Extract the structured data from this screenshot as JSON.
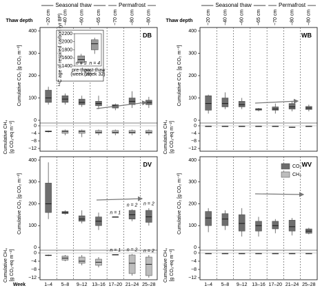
{
  "chart_data": [
    {
      "type": "box",
      "title": "DB",
      "depth_title": "Thaw depth",
      "phase_labels": [
        "Seasonal thaw",
        "Permafrost"
      ],
      "depths": [
        "−20 cm",
        "−40 cm",
        "−60 cm",
        "−65 cm",
        "−70 cm",
        "−80 cm",
        "−80 cm"
      ],
      "ylabel": "Cumulative CO₂ [g CO₂ m⁻²]",
      "ylim": [
        0,
        400
      ],
      "yticks": [
        0,
        100,
        200,
        300,
        400
      ],
      "y2label": [
        "Cumulative CH₄",
        "[g CO₂-eq m⁻²]"
      ],
      "y2lim": [
        -12,
        0
      ],
      "y2ticks": [
        0,
        {
          "value": -4,
          "label": "−4"
        },
        {
          "value": -8,
          "label": "−8"
        },
        {
          "value": -12,
          "label": "−12"
        }
      ],
      "series": [
        {
          "color": "#6e6e6e",
          "values": [
            [
              70,
              80,
              100,
              135,
              150
            ],
            [
              70,
              80,
              95,
              110,
              120
            ],
            [
              60,
              70,
              80,
              95,
              110
            ],
            [
              50,
              65,
              75,
              85,
              110
            ],
            [
              45,
              55,
              65,
              70,
              75
            ],
            [
              55,
              70,
              85,
              100,
              130
            ],
            [
              55,
              70,
              80,
              90,
              105
            ]
          ]
        },
        {
          "color": "#bdbdbd",
          "axis": "y2",
          "values": [
            [
              -3.5,
              -3.2,
              -3,
              -2.7,
              -2.5
            ],
            [
              -5,
              -4,
              -3,
              -2.5,
              -2
            ],
            [
              -6,
              -4,
              -3,
              -2.5,
              -2
            ],
            [
              -5,
              -4,
              -3.5,
              -2.5,
              -2
            ],
            [
              -5,
              -4,
              -3.5,
              -2.5,
              -2
            ],
            [
              -5,
              -4,
              -3.5,
              -2.5,
              -2
            ],
            [
              -5,
              -4,
              -3.5,
              -2.5,
              -2
            ]
          ]
        }
      ],
      "inset": {
        "ylabel": "¹⁴C age of respired carbon (yr BP)",
        "ylim": [
          1400,
          2200
        ],
        "yticks": [
          1400,
          1600,
          1800,
          2000,
          2200
        ],
        "categories": [
          [
            "pre-thaw",
            "(week 15)"
          ],
          [
            "post-thaw",
            "(week 32)"
          ]
        ],
        "n_labels": [
          "n = 3",
          "n = 4"
        ],
        "color": "#9a9a9a",
        "values": [
          [
            1420,
            1480,
            1560,
            1650,
            1700
          ],
          [
            1700,
            1800,
            1950,
            2050,
            2100
          ]
        ]
      }
    },
    {
      "type": "box",
      "title": "WB",
      "depth_title": "Thaw depth",
      "phase_labels": [
        "Seasonal thaw",
        "Permafrost"
      ],
      "depths": [
        "−20 cm",
        "−40 cm",
        "−60 cm",
        "−65 cm",
        "−70 cm",
        "−80 cm",
        "−80 cm"
      ],
      "ylabel": "Cumulative CO₂ [g CO₂ m⁻²]",
      "ylim": [
        0,
        400
      ],
      "yticks": [
        0,
        100,
        200,
        300,
        400
      ],
      "y2label": [
        "Cumulative CH₄",
        "[g CO₂-eq m⁻²]"
      ],
      "y2lim": [
        -12,
        0
      ],
      "y2ticks": [
        0,
        {
          "value": -4,
          "label": "−4"
        },
        {
          "value": -8,
          "label": "−8"
        },
        {
          "value": -12,
          "label": "−12"
        }
      ],
      "series": [
        {
          "color": "#6e6e6e",
          "values": [
            [
              30,
              45,
              75,
              110,
              115
            ],
            [
              50,
              60,
              75,
              100,
              125
            ],
            [
              50,
              60,
              70,
              85,
              100
            ],
            [
              40,
              45,
              50,
              52,
              55
            ],
            [
              30,
              45,
              50,
              60,
              75
            ],
            [
              40,
              50,
              60,
              75,
              85
            ],
            [
              40,
              48,
              55,
              62,
              70
            ]
          ]
        },
        {
          "color": "#bdbdbd",
          "axis": "y2",
          "values": [
            [
              -0.5,
              -0.4,
              -0.3,
              -0.2,
              -0.1
            ],
            [
              -0.5,
              -0.4,
              -0.3,
              -0.2,
              -0.1
            ],
            [
              -0.5,
              -0.4,
              -0.3,
              -0.2,
              -0.1
            ],
            [
              -0.5,
              -0.4,
              -0.3,
              -0.2,
              -0.1
            ],
            [
              -0.5,
              -0.4,
              -0.3,
              -0.2,
              -0.1
            ],
            [
              -1,
              -0.9,
              -0.8,
              -0.6,
              -0.5
            ],
            [
              -0.5,
              -0.4,
              -0.3,
              -0.2,
              -0.1
            ]
          ]
        }
      ]
    },
    {
      "type": "box",
      "title": "DV",
      "xlabel": "Week",
      "categories": [
        "1–4",
        "5–8",
        "9–12",
        "13–16",
        "17–20",
        "21–24",
        "25–28"
      ],
      "ylabel": "Cumulative CO₂ [g CO₂ m⁻²]",
      "ylim": [
        0,
        400
      ],
      "yticks": [
        0,
        100,
        200,
        300,
        400
      ],
      "y2label": [
        "Cumulative CH₄",
        "[g CO₂-eq m⁻²]"
      ],
      "y2lim": [
        -12,
        0
      ],
      "y2ticks": [
        0,
        {
          "value": -4,
          "label": "−4"
        },
        {
          "value": -8,
          "label": "−8"
        },
        {
          "value": -12,
          "label": "−12"
        }
      ],
      "series": [
        {
          "color": "#6e6e6e",
          "values": [
            [
              130,
              160,
              200,
              295,
              390
            ],
            [
              150,
              155,
              160,
              165,
              170
            ],
            [
              110,
              120,
              130,
              145,
              170
            ],
            [
              80,
              100,
              120,
              140,
              160
            ],
            [
              140,
              140,
              140,
              140,
              140
            ],
            [
              120,
              130,
              150,
              170,
              175
            ],
            [
              100,
              115,
              140,
              170,
              180
            ]
          ]
        },
        {
          "color": "#bdbdbd",
          "axis": "y2",
          "values": [
            [
              -1.5,
              -1.3,
              -1.2,
              -1,
              -0.8
            ],
            [
              -4,
              -3.5,
              -2.5,
              -1.5,
              -1
            ],
            [
              -6,
              -5,
              -4,
              -2,
              -1
            ],
            [
              -7,
              -6,
              -4.5,
              -3,
              -2
            ],
            [
              -0.8,
              -0.8,
              -0.8,
              -0.8,
              -0.8
            ],
            [
              -11,
              -10,
              -5,
              -1,
              -0.5
            ],
            [
              -12,
              -11,
              -5.5,
              -2,
              -1
            ]
          ]
        }
      ],
      "annotations": [
        {
          "text": "n = 1",
          "index": 4,
          "axis": "y"
        },
        {
          "text": "n = 2",
          "index": 5,
          "axis": "y"
        },
        {
          "text": "n = 2",
          "index": 6,
          "axis": "y"
        },
        {
          "text": "n = 1",
          "index": 4,
          "axis": "y2"
        },
        {
          "text": "n = 2",
          "index": 5,
          "axis": "y2"
        },
        {
          "text": "n = 2",
          "index": 6,
          "axis": "y2"
        }
      ]
    },
    {
      "type": "box",
      "title": "WV",
      "categories": [
        "1–4",
        "5–8",
        "9–12",
        "13–16",
        "17–20",
        "21–24",
        "25–28"
      ],
      "ylabel": "Cumulative CO₂ [g CO₂ m⁻²]",
      "ylim": [
        0,
        400
      ],
      "yticks": [
        0,
        100,
        200,
        300,
        400
      ],
      "y2label": [
        "Cumulative CH₄",
        "[g CO₂-eq m⁻²]"
      ],
      "y2lim": [
        -12,
        0
      ],
      "y2ticks": [
        0,
        {
          "value": -4,
          "label": "−4"
        },
        {
          "value": -8,
          "label": "−8"
        },
        {
          "value": -12,
          "label": "−12"
        }
      ],
      "series": [
        {
          "name": "CO₂",
          "color": "#6e6e6e",
          "values": [
            [
              70,
              100,
              135,
              165,
              180
            ],
            [
              80,
              100,
              130,
              155,
              170
            ],
            [
              50,
              75,
              110,
              150,
              180
            ],
            [
              50,
              75,
              100,
              120,
              140
            ],
            [
              65,
              85,
              100,
              120,
              130
            ],
            [
              55,
              75,
              95,
              125,
              135
            ],
            [
              60,
              65,
              75,
              85,
              90
            ]
          ]
        },
        {
          "name": "CH₄",
          "color": "#bdbdbd",
          "axis": "y2",
          "values": [
            [
              -0.5,
              -0.4,
              -0.3,
              -0.2,
              -0.1
            ],
            [
              -0.5,
              -0.4,
              -0.3,
              -0.2,
              -0.1
            ],
            [
              -0.5,
              -0.4,
              -0.3,
              -0.2,
              -0.1
            ],
            [
              -0.5,
              -0.4,
              -0.3,
              -0.2,
              -0.1
            ],
            [
              -0.5,
              -0.4,
              -0.3,
              -0.2,
              -0.1
            ],
            [
              -0.5,
              -0.4,
              -0.3,
              -0.2,
              -0.1
            ],
            [
              -0.5,
              -0.4,
              -0.3,
              -0.2,
              -0.1
            ]
          ]
        }
      ],
      "legend": "upper right"
    }
  ]
}
